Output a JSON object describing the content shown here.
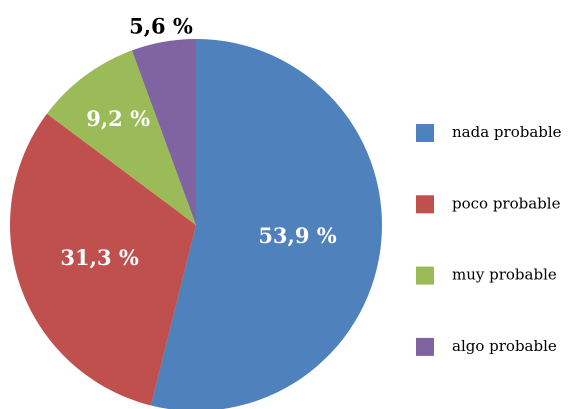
{
  "chart_data": {
    "type": "pie",
    "categories": [
      "nada probable",
      "poco probable",
      "muy probable",
      "algo probable"
    ],
    "values": [
      53.9,
      31.3,
      9.2,
      5.6
    ],
    "value_labels": [
      "53,9 %",
      "31,3 %",
      "9,2 %",
      "5,6 %"
    ],
    "colors": [
      "#4f81bd",
      "#c0504d",
      "#9bbb59",
      "#8064a2"
    ],
    "legend": "right"
  }
}
